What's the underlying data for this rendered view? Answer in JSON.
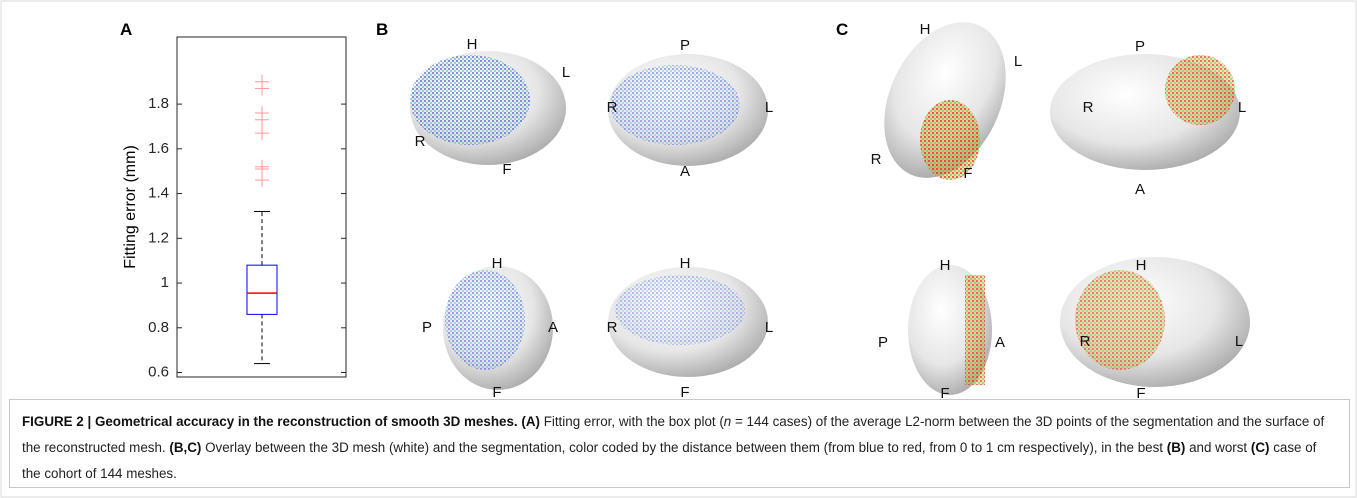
{
  "chart_data": {
    "type": "box",
    "panel_label": "A",
    "ylabel": "Fitting error (mm)",
    "ylim": [
      0.58,
      2.1
    ],
    "yticks": [
      0.6,
      0.8,
      1,
      1.2,
      1.4,
      1.6,
      1.8
    ],
    "box": {
      "whisker_low": 0.64,
      "q1": 0.86,
      "median": 0.955,
      "q3": 1.08,
      "whisker_high": 1.32
    },
    "outliers": [
      1.46,
      1.51,
      1.52,
      1.67,
      1.73,
      1.76,
      1.87,
      1.9
    ],
    "box_color": "#0000ff",
    "median_color": "#ff0000",
    "whisker_color": "#000000",
    "outlier_color": "#ff9a9a"
  },
  "panels": {
    "B": {
      "label": "B",
      "views": [
        [
          "H",
          "L",
          "R",
          "F"
        ],
        [
          "P",
          "R",
          "L",
          "A"
        ],
        [
          "H",
          "P",
          "A",
          "F"
        ],
        [
          "H",
          "R",
          "L",
          "F"
        ]
      ]
    },
    "C": {
      "label": "C",
      "views": [
        [
          "H",
          "L",
          "R",
          "F"
        ],
        [
          "P",
          "R",
          "L",
          "A"
        ],
        [
          "H",
          "P",
          "A",
          "F"
        ],
        [
          "H",
          "R",
          "L",
          "F"
        ]
      ]
    }
  },
  "caption": {
    "title": "FIGURE 2 | Geometrical accuracy in the reconstruction of smooth 3D meshes.",
    "ref_a": "(A)",
    "text_a1": "Fitting error, with the box plot (",
    "n": "n",
    "text_a2": "= 144 cases) of the average L2-norm between the 3D points of the segmentation and the surface of the reconstructed mesh.",
    "ref_bc": "(B,C)",
    "text_bc": "Overlay between the 3D mesh (white) and the segmentation, color coded by the distance between them (from blue to red, from 0 to 1 cm respectively), in the best",
    "ref_b": "(B)",
    "text_and": "and worst",
    "ref_c": "(C)",
    "text_end": "case of the cohort of 144 meshes."
  }
}
